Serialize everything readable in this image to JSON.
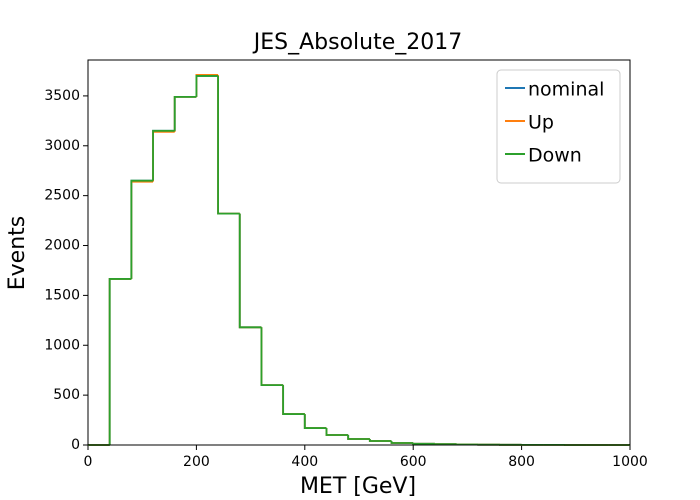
{
  "chart_data": {
    "type": "histogram_step",
    "title": "JES_Absolute_2017",
    "x_label": "MET [GeV]",
    "y_label": "Events",
    "bins": [
      0,
      40,
      80,
      120,
      160,
      200,
      240,
      280,
      320,
      360,
      400,
      440,
      480,
      520,
      560,
      600,
      640,
      680,
      720,
      760,
      800,
      840,
      880,
      920,
      960,
      1000
    ],
    "series": [
      {
        "name": "nominal",
        "color": "#1f77b4",
        "values": [
          0,
          1665,
          2650,
          3150,
          3490,
          3700,
          2320,
          1180,
          600,
          310,
          170,
          100,
          60,
          40,
          20,
          12,
          8,
          5,
          3,
          2,
          1,
          1,
          0,
          0,
          0
        ]
      },
      {
        "name": "Up",
        "color": "#ff7f0e",
        "values": [
          0,
          1665,
          2640,
          3140,
          3490,
          3710,
          2320,
          1180,
          600,
          310,
          170,
          100,
          60,
          40,
          20,
          12,
          8,
          5,
          3,
          2,
          1,
          1,
          0,
          0,
          0
        ]
      },
      {
        "name": "Down",
        "color": "#2ca02c",
        "values": [
          0,
          1665,
          2650,
          3150,
          3490,
          3700,
          2320,
          1180,
          600,
          310,
          170,
          100,
          60,
          40,
          20,
          12,
          8,
          5,
          3,
          2,
          1,
          1,
          0,
          0,
          0
        ]
      }
    ],
    "xlim": [
      0,
      1000
    ],
    "xticks": [
      0,
      200,
      400,
      600,
      800,
      1000
    ],
    "ylim": [
      0,
      3860
    ],
    "yticks": [
      0,
      500,
      1000,
      1500,
      2000,
      2500,
      3000,
      3500
    ],
    "grid": false,
    "legend": "upper right"
  }
}
